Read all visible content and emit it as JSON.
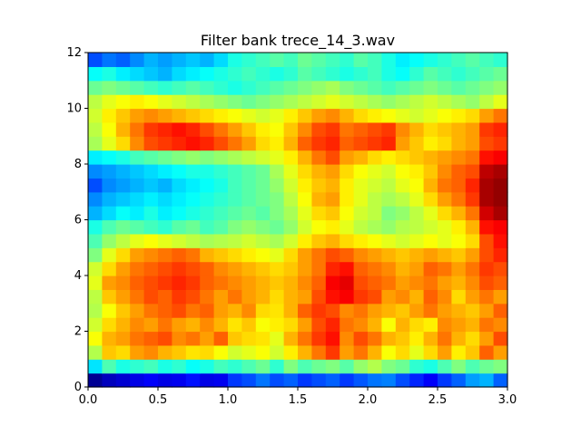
{
  "chart_data": {
    "type": "heatmap",
    "title": "Filter bank trece_14_3.wav",
    "xlabel": "",
    "ylabel": "",
    "xlim": [
      0.0,
      3.0
    ],
    "ylim": [
      0,
      12
    ],
    "x_ticks": [
      0.0,
      0.5,
      1.0,
      1.5,
      2.0,
      2.5,
      3.0
    ],
    "x_tick_labels": [
      "0.0",
      "0.5",
      "1.0",
      "1.5",
      "2.0",
      "2.5",
      "3.0"
    ],
    "y_ticks": [
      0,
      2,
      4,
      6,
      8,
      10,
      12
    ],
    "y_tick_labels": [
      "0",
      "2",
      "4",
      "6",
      "8",
      "10",
      "12"
    ],
    "colormap": "jet",
    "value_range": [
      0,
      1
    ],
    "grid": false,
    "n_frames": 30,
    "n_bands": 12,
    "n_rows": 24,
    "row_step": 0.5,
    "x_step": 0.1,
    "values": [
      [
        0.02,
        0.06,
        0.08,
        0.1,
        0.12,
        0.1,
        0.11,
        0.14,
        0.1,
        0.11,
        0.18,
        0.2,
        0.24,
        0.2,
        0.22,
        0.18,
        0.2,
        0.22,
        0.18,
        0.21,
        0.24,
        0.25,
        0.2,
        0.16,
        0.12,
        0.18,
        0.22,
        0.28,
        0.3,
        0.22
      ],
      [
        0.35,
        0.45,
        0.4,
        0.42,
        0.44,
        0.4,
        0.42,
        0.38,
        0.4,
        0.44,
        0.42,
        0.45,
        0.48,
        0.42,
        0.5,
        0.45,
        0.48,
        0.5,
        0.46,
        0.52,
        0.55,
        0.5,
        0.48,
        0.42,
        0.4,
        0.45,
        0.5,
        0.45,
        0.48,
        0.5
      ],
      [
        0.55,
        0.68,
        0.66,
        0.72,
        0.74,
        0.7,
        0.68,
        0.65,
        0.66,
        0.62,
        0.58,
        0.6,
        0.62,
        0.58,
        0.64,
        0.7,
        0.76,
        0.82,
        0.72,
        0.76,
        0.7,
        0.62,
        0.66,
        0.6,
        0.66,
        0.72,
        0.64,
        0.68,
        0.78,
        0.72
      ],
      [
        0.62,
        0.7,
        0.72,
        0.76,
        0.78,
        0.8,
        0.74,
        0.76,
        0.72,
        0.78,
        0.68,
        0.66,
        0.65,
        0.6,
        0.7,
        0.76,
        0.82,
        0.86,
        0.74,
        0.8,
        0.76,
        0.7,
        0.68,
        0.64,
        0.7,
        0.76,
        0.7,
        0.66,
        0.72,
        0.8
      ],
      [
        0.58,
        0.66,
        0.7,
        0.74,
        0.72,
        0.76,
        0.72,
        0.7,
        0.74,
        0.7,
        0.65,
        0.68,
        0.62,
        0.64,
        0.66,
        0.72,
        0.8,
        0.84,
        0.76,
        0.74,
        0.7,
        0.62,
        0.7,
        0.66,
        0.64,
        0.74,
        0.72,
        0.7,
        0.76,
        0.74
      ],
      [
        0.55,
        0.62,
        0.68,
        0.72,
        0.76,
        0.78,
        0.8,
        0.76,
        0.78,
        0.72,
        0.7,
        0.74,
        0.66,
        0.65,
        0.7,
        0.78,
        0.82,
        0.8,
        0.74,
        0.76,
        0.72,
        0.7,
        0.68,
        0.72,
        0.76,
        0.72,
        0.7,
        0.68,
        0.72,
        0.78
      ],
      [
        0.56,
        0.68,
        0.72,
        0.76,
        0.8,
        0.78,
        0.82,
        0.8,
        0.76,
        0.72,
        0.76,
        0.72,
        0.7,
        0.66,
        0.7,
        0.72,
        0.8,
        0.86,
        0.88,
        0.82,
        0.8,
        0.72,
        0.74,
        0.7,
        0.78,
        0.74,
        0.66,
        0.72,
        0.76,
        0.72
      ],
      [
        0.6,
        0.72,
        0.74,
        0.78,
        0.8,
        0.82,
        0.84,
        0.82,
        0.78,
        0.76,
        0.74,
        0.72,
        0.7,
        0.68,
        0.7,
        0.74,
        0.78,
        0.88,
        0.9,
        0.8,
        0.78,
        0.76,
        0.72,
        0.74,
        0.76,
        0.72,
        0.7,
        0.74,
        0.8,
        0.78
      ],
      [
        0.58,
        0.66,
        0.72,
        0.76,
        0.78,
        0.8,
        0.82,
        0.8,
        0.78,
        0.74,
        0.72,
        0.7,
        0.68,
        0.66,
        0.68,
        0.72,
        0.76,
        0.84,
        0.86,
        0.78,
        0.76,
        0.74,
        0.7,
        0.72,
        0.78,
        0.76,
        0.72,
        0.76,
        0.82,
        0.8
      ],
      [
        0.5,
        0.6,
        0.66,
        0.72,
        0.74,
        0.76,
        0.78,
        0.76,
        0.7,
        0.68,
        0.66,
        0.64,
        0.62,
        0.6,
        0.66,
        0.72,
        0.76,
        0.8,
        0.78,
        0.74,
        0.72,
        0.7,
        0.68,
        0.7,
        0.72,
        0.7,
        0.68,
        0.72,
        0.8,
        0.84
      ],
      [
        0.45,
        0.52,
        0.56,
        0.6,
        0.62,
        0.6,
        0.58,
        0.56,
        0.54,
        0.55,
        0.56,
        0.58,
        0.56,
        0.54,
        0.58,
        0.64,
        0.68,
        0.7,
        0.66,
        0.64,
        0.62,
        0.6,
        0.58,
        0.6,
        0.62,
        0.6,
        0.62,
        0.66,
        0.8,
        0.86
      ],
      [
        0.4,
        0.45,
        0.48,
        0.46,
        0.44,
        0.42,
        0.46,
        0.48,
        0.44,
        0.46,
        0.5,
        0.52,
        0.5,
        0.48,
        0.52,
        0.58,
        0.62,
        0.64,
        0.6,
        0.56,
        0.54,
        0.52,
        0.55,
        0.56,
        0.58,
        0.6,
        0.64,
        0.7,
        0.86,
        0.88
      ],
      [
        0.3,
        0.34,
        0.38,
        0.36,
        0.4,
        0.36,
        0.38,
        0.4,
        0.42,
        0.44,
        0.46,
        0.48,
        0.46,
        0.5,
        0.54,
        0.6,
        0.66,
        0.68,
        0.62,
        0.58,
        0.56,
        0.5,
        0.52,
        0.56,
        0.6,
        0.66,
        0.7,
        0.76,
        0.92,
        0.96
      ],
      [
        0.26,
        0.3,
        0.32,
        0.34,
        0.36,
        0.34,
        0.36,
        0.38,
        0.4,
        0.42,
        0.44,
        0.46,
        0.48,
        0.5,
        0.56,
        0.62,
        0.7,
        0.72,
        0.64,
        0.6,
        0.56,
        0.54,
        0.56,
        0.6,
        0.66,
        0.72,
        0.76,
        0.82,
        0.96,
        0.98
      ],
      [
        0.2,
        0.26,
        0.28,
        0.3,
        0.32,
        0.3,
        0.34,
        0.36,
        0.38,
        0.4,
        0.44,
        0.46,
        0.48,
        0.52,
        0.58,
        0.64,
        0.68,
        0.7,
        0.64,
        0.6,
        0.58,
        0.56,
        0.6,
        0.62,
        0.7,
        0.76,
        0.78,
        0.84,
        0.96,
        0.98
      ],
      [
        0.26,
        0.28,
        0.3,
        0.32,
        0.34,
        0.36,
        0.38,
        0.4,
        0.4,
        0.42,
        0.44,
        0.46,
        0.48,
        0.54,
        0.6,
        0.66,
        0.7,
        0.72,
        0.66,
        0.62,
        0.6,
        0.58,
        0.62,
        0.64,
        0.68,
        0.74,
        0.78,
        0.8,
        0.94,
        0.96
      ],
      [
        0.36,
        0.38,
        0.4,
        0.44,
        0.46,
        0.48,
        0.5,
        0.52,
        0.5,
        0.52,
        0.54,
        0.56,
        0.58,
        0.6,
        0.64,
        0.7,
        0.76,
        0.8,
        0.72,
        0.7,
        0.66,
        0.64,
        0.66,
        0.68,
        0.7,
        0.72,
        0.74,
        0.76,
        0.86,
        0.88
      ],
      [
        0.54,
        0.6,
        0.66,
        0.74,
        0.8,
        0.82,
        0.84,
        0.86,
        0.84,
        0.8,
        0.76,
        0.72,
        0.66,
        0.64,
        0.7,
        0.78,
        0.82,
        0.84,
        0.78,
        0.8,
        0.82,
        0.84,
        0.72,
        0.68,
        0.64,
        0.66,
        0.7,
        0.72,
        0.8,
        0.82
      ],
      [
        0.56,
        0.62,
        0.7,
        0.76,
        0.82,
        0.84,
        0.86,
        0.84,
        0.8,
        0.76,
        0.72,
        0.68,
        0.64,
        0.62,
        0.68,
        0.74,
        0.8,
        0.82,
        0.76,
        0.78,
        0.8,
        0.82,
        0.74,
        0.7,
        0.66,
        0.68,
        0.7,
        0.72,
        0.82,
        0.84
      ],
      [
        0.58,
        0.64,
        0.68,
        0.72,
        0.74,
        0.72,
        0.7,
        0.68,
        0.66,
        0.64,
        0.62,
        0.6,
        0.58,
        0.6,
        0.64,
        0.68,
        0.72,
        0.74,
        0.7,
        0.66,
        0.64,
        0.62,
        0.6,
        0.58,
        0.6,
        0.62,
        0.64,
        0.66,
        0.72,
        0.76
      ],
      [
        0.56,
        0.6,
        0.62,
        0.64,
        0.62,
        0.6,
        0.58,
        0.56,
        0.54,
        0.52,
        0.5,
        0.48,
        0.5,
        0.52,
        0.54,
        0.56,
        0.58,
        0.6,
        0.58,
        0.56,
        0.54,
        0.52,
        0.54,
        0.56,
        0.58,
        0.56,
        0.54,
        0.52,
        0.56,
        0.6
      ],
      [
        0.48,
        0.5,
        0.48,
        0.46,
        0.44,
        0.42,
        0.44,
        0.46,
        0.44,
        0.42,
        0.4,
        0.42,
        0.44,
        0.46,
        0.48,
        0.5,
        0.52,
        0.54,
        0.5,
        0.48,
        0.46,
        0.44,
        0.46,
        0.48,
        0.5,
        0.48,
        0.46,
        0.48,
        0.5,
        0.52
      ],
      [
        0.38,
        0.4,
        0.36,
        0.34,
        0.32,
        0.3,
        0.34,
        0.36,
        0.38,
        0.4,
        0.42,
        0.44,
        0.42,
        0.4,
        0.42,
        0.46,
        0.44,
        0.42,
        0.4,
        0.42,
        0.44,
        0.4,
        0.38,
        0.42,
        0.46,
        0.44,
        0.42,
        0.44,
        0.46,
        0.48
      ],
      [
        0.2,
        0.24,
        0.22,
        0.26,
        0.3,
        0.28,
        0.3,
        0.32,
        0.3,
        0.34,
        0.4,
        0.42,
        0.44,
        0.46,
        0.44,
        0.48,
        0.46,
        0.44,
        0.42,
        0.46,
        0.44,
        0.4,
        0.36,
        0.38,
        0.4,
        0.42,
        0.44,
        0.46,
        0.44,
        0.42
      ]
    ]
  }
}
